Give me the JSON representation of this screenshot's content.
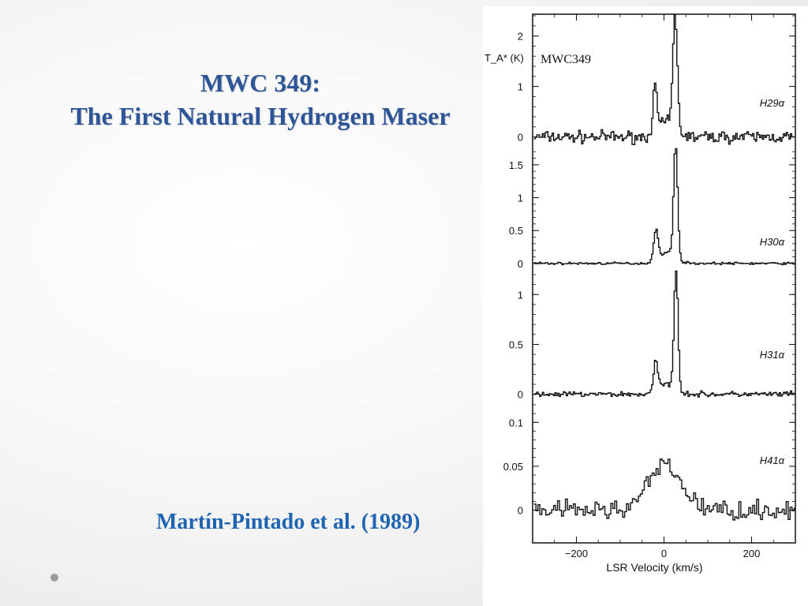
{
  "slide": {
    "title_line1": "MWC 349:",
    "title_line2": "The First Natural Hydrogen Maser",
    "citation": "Martín-Pintado et al. (1989)",
    "colors": {
      "title": "#2e5597",
      "citation": "#1f64b3"
    }
  },
  "chart_data": {
    "type": "line",
    "source_label": "MWC349",
    "ylabel": "T_A* (K)",
    "xlabel": "LSR Velocity (km/s)",
    "xlim": [
      -300,
      300
    ],
    "x_ticks": [
      -200,
      0,
      200
    ],
    "x_tick_labels": [
      "−200",
      "0",
      "200"
    ],
    "panels": [
      {
        "name": "H29α",
        "ylim": [
          -0.1,
          2.4
        ],
        "y_ticks": [
          0,
          1,
          2
        ],
        "y_tick_labels": [
          "0",
          "1",
          "2"
        ],
        "noise": 0.13,
        "peaks": [
          {
            "v": -22,
            "amp": 0.9,
            "w": 5
          },
          {
            "v": 24,
            "amp": 2.2,
            "w": 5
          }
        ]
      },
      {
        "name": "H30α",
        "ylim": [
          -0.05,
          1.75
        ],
        "y_ticks": [
          0,
          0.5,
          1,
          1.5
        ],
        "y_tick_labels": [
          "0",
          "0.5",
          "1",
          "1.5"
        ],
        "noise": 0.02,
        "peaks": [
          {
            "v": -20,
            "amp": 0.48,
            "w": 5
          },
          {
            "v": 25,
            "amp": 1.72,
            "w": 4.5
          }
        ]
      },
      {
        "name": "H31α",
        "ylim": [
          -0.05,
          1.2
        ],
        "y_ticks": [
          0,
          0.5,
          1
        ],
        "y_tick_labels": [
          "0",
          "0.5",
          "1"
        ],
        "noise": 0.03,
        "peaks": [
          {
            "v": -20,
            "amp": 0.3,
            "w": 5
          },
          {
            "v": 26,
            "amp": 1.2,
            "w": 4.5
          }
        ]
      },
      {
        "name": "H41α",
        "ylim": [
          -0.03,
          0.12
        ],
        "y_ticks": [
          0,
          0.05,
          0.1
        ],
        "y_tick_labels": [
          "0",
          "0.05",
          "0.1"
        ],
        "noise": 0.012,
        "peaks": [
          {
            "v": 0,
            "amp": 0.05,
            "w": 38
          }
        ]
      }
    ]
  }
}
